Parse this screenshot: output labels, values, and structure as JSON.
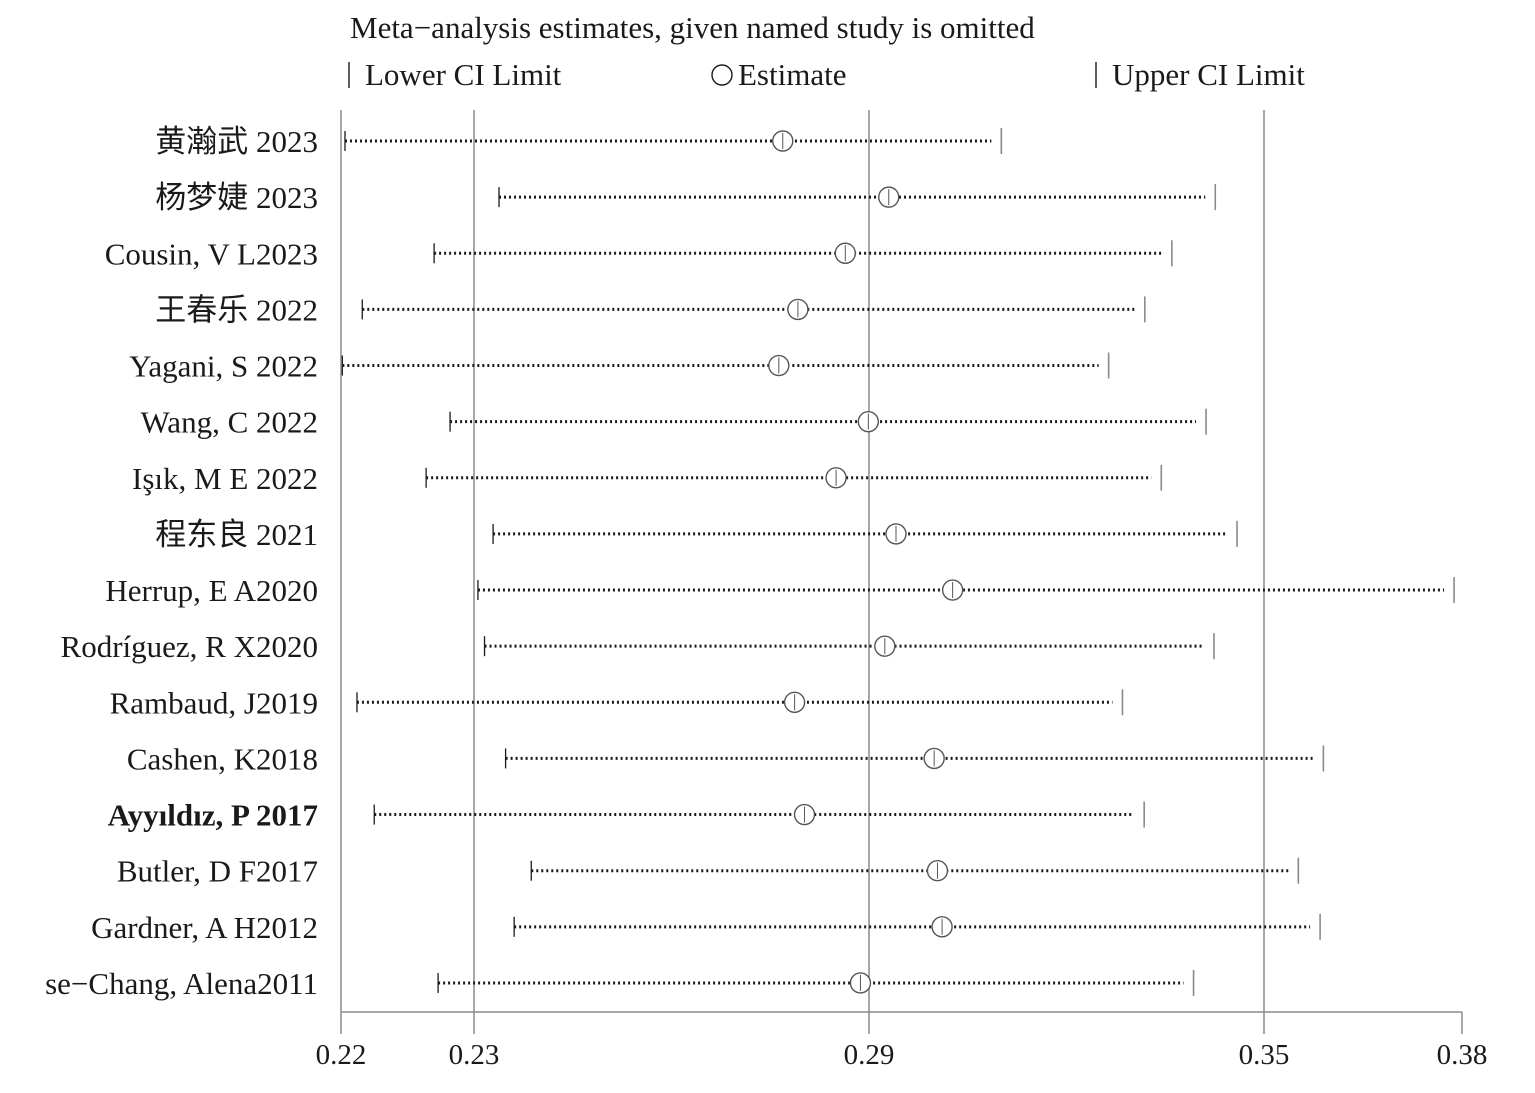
{
  "chart_data": {
    "type": "forest",
    "title": "Meta−analysis estimates, given named study is omitted",
    "legend": {
      "position": "top",
      "lower": "Lower CI Limit",
      "estimate": "Estimate",
      "upper": "Upper CI Limit"
    },
    "xaxis": {
      "ticks": [
        0.22,
        0.23,
        0.29,
        0.35,
        0.38
      ],
      "tick_labels": [
        "0.22",
        "0.23",
        "0.29",
        "0.35",
        "0.38"
      ],
      "gridlines_at": [
        0.23,
        0.29,
        0.35
      ]
    },
    "studies": [
      {
        "label": "黄瀚武  2023",
        "lower": 0.2203,
        "estimate": 0.2769,
        "upper": 0.3101
      },
      {
        "label": "杨梦婕  2023",
        "lower": 0.2338,
        "estimate": 0.293,
        "upper": 0.3426
      },
      {
        "label": "Cousin, V L2023",
        "lower": 0.227,
        "estimate": 0.2864,
        "upper": 0.336
      },
      {
        "label": "王春乐  2022",
        "lower": 0.2216,
        "estimate": 0.2792,
        "upper": 0.3319
      },
      {
        "label": "Yagani, S 2022",
        "lower": 0.2201,
        "estimate": 0.2763,
        "upper": 0.3264
      },
      {
        "label": "Wang, C 2022",
        "lower": 0.2282,
        "estimate": 0.2899,
        "upper": 0.3412
      },
      {
        "label": "Işık, M E  2022",
        "lower": 0.2264,
        "estimate": 0.285,
        "upper": 0.3344
      },
      {
        "label": "程东良  2021",
        "lower": 0.2329,
        "estimate": 0.2941,
        "upper": 0.3459
      },
      {
        "label": "Herrup, E A2020",
        "lower": 0.2306,
        "estimate": 0.3027,
        "upper": 0.3788
      },
      {
        "label": "Rodríguez, R X2020",
        "lower": 0.2316,
        "estimate": 0.2924,
        "upper": 0.3424
      },
      {
        "label": "Rambaud, J2019",
        "lower": 0.2212,
        "estimate": 0.2787,
        "upper": 0.3285
      },
      {
        "label": "Cashen, K2018",
        "lower": 0.2348,
        "estimate": 0.2999,
        "upper": 0.359
      },
      {
        "label": "Ayyıldız, P  2017",
        "lower": 0.2225,
        "estimate": 0.2802,
        "upper": 0.3318
      },
      {
        "label": "Butler, D F2017",
        "lower": 0.2387,
        "estimate": 0.3004,
        "upper": 0.3552
      },
      {
        "label": "Gardner, A H2012",
        "lower": 0.2361,
        "estimate": 0.3011,
        "upper": 0.3585
      },
      {
        "label": "se−Chang, Alena2011",
        "lower": 0.2273,
        "estimate": 0.2887,
        "upper": 0.3393
      }
    ]
  }
}
